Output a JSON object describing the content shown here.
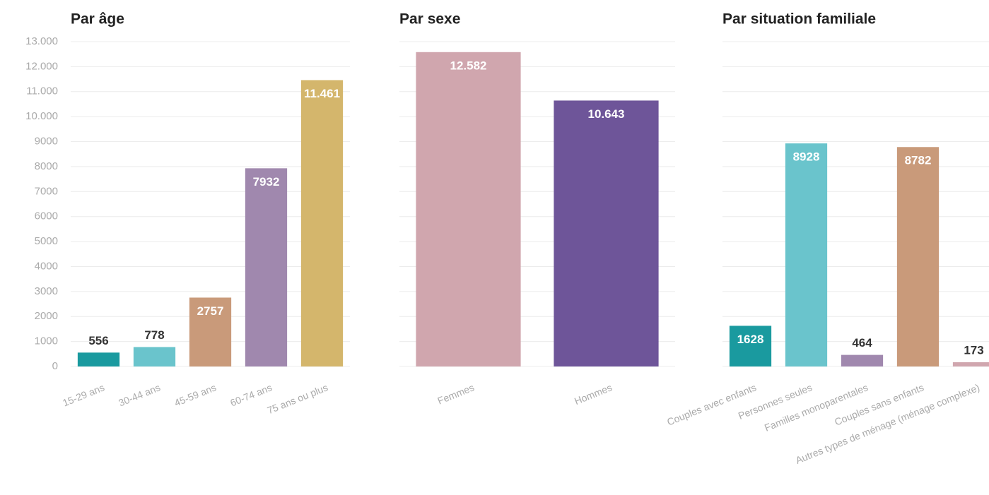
{
  "chart_data": [
    {
      "type": "bar",
      "title": "Par âge",
      "categories": [
        "15-29 ans",
        "30-44 ans",
        "45-59 ans",
        "60-74 ans",
        "75 ans ou plus"
      ],
      "values": [
        556,
        778,
        2757,
        7932,
        11461
      ],
      "value_labels": [
        "556",
        "778",
        "2757",
        "7932",
        "11.461"
      ],
      "colors": [
        "#1a9a9f",
        "#6ac4cc",
        "#c99a7a",
        "#a088ae",
        "#d4b66c"
      ],
      "ylim": [
        0,
        13000
      ],
      "yticks": [
        0,
        1000,
        2000,
        3000,
        4000,
        5000,
        6000,
        7000,
        8000,
        9000,
        {
          "value": 10000,
          "label": "10.000"
        },
        {
          "value": 11000,
          "label": "11.000"
        },
        {
          "value": 12000,
          "label": "12.000"
        },
        {
          "value": 13000,
          "label": "13.000"
        }
      ],
      "grid": true
    },
    {
      "type": "bar",
      "title": "Par sexe",
      "categories": [
        "Femmes",
        "Hommes"
      ],
      "values": [
        12582,
        10643
      ],
      "value_labels": [
        "12.582",
        "10.643"
      ],
      "colors": [
        "#d0a6ae",
        "#6e5599"
      ],
      "ylim": [
        0,
        13000
      ],
      "grid": true
    },
    {
      "type": "bar",
      "title": "Par situation familiale",
      "categories": [
        "Couples avec enfants",
        "Personnes seules",
        "Familles monoparentales",
        "Couples sans enfants",
        "Autres types de ménage (ménage complexe)"
      ],
      "values": [
        1628,
        8928,
        464,
        8782,
        173
      ],
      "value_labels": [
        "1628",
        "8928",
        "464",
        "8782",
        "173"
      ],
      "colors": [
        "#1a9a9f",
        "#6ac4cc",
        "#a088ae",
        "#c99a7a",
        "#d0a6ae"
      ],
      "ylim": [
        0,
        13000
      ],
      "grid": true
    }
  ]
}
